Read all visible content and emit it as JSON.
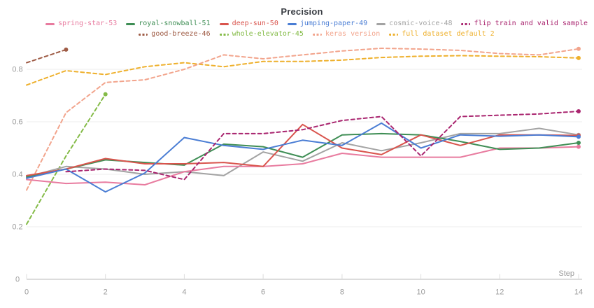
{
  "title": "Precision",
  "axes": {
    "x_label": "Step",
    "x_ticks": [
      0,
      2,
      4,
      6,
      8,
      10,
      12,
      14
    ],
    "x_range": [
      0,
      14
    ],
    "y_ticks": [
      0,
      0.2,
      0.4,
      0.6,
      0.8
    ],
    "y_tick_labels": [
      "0",
      "0.2",
      "0.4",
      "0.6",
      "0.8"
    ],
    "grid_values": [
      0.2,
      0.4,
      0.6,
      0.8
    ],
    "tick_color": "#9b9b9b",
    "grid_color": "#ededed",
    "axis_color": "#dcdcdc"
  },
  "chart_data": {
    "type": "line",
    "title": "Precision",
    "xlabel": "Step",
    "x_ticks": [
      0,
      2,
      4,
      6,
      8,
      10,
      12,
      14
    ],
    "xlim": [
      0,
      14
    ],
    "ylim": [
      0,
      0.9
    ],
    "grid": "horizontal",
    "legend_position": "top",
    "series": [
      {
        "name": "spring-star-53",
        "color": "#e87b9f",
        "dashed": false,
        "legend_row": 1,
        "start_step": 0,
        "values": [
          0.38,
          0.365,
          0.37,
          0.36,
          0.41,
          0.43,
          0.43,
          0.44,
          0.48,
          0.465,
          0.465,
          0.465,
          0.5,
          0.5,
          0.505
        ]
      },
      {
        "name": "royal-snowball-51",
        "color": "#3f8e55",
        "dashed": false,
        "legend_row": 1,
        "start_step": 0,
        "values": [
          0.39,
          0.42,
          0.455,
          0.445,
          0.435,
          0.515,
          0.505,
          0.465,
          0.55,
          0.555,
          0.55,
          0.525,
          0.495,
          0.5,
          0.52
        ]
      },
      {
        "name": "deep-sun-50",
        "color": "#d9544d",
        "dashed": false,
        "legend_row": 1,
        "start_step": 0,
        "values": [
          0.395,
          0.42,
          0.46,
          0.44,
          0.44,
          0.445,
          0.43,
          0.59,
          0.5,
          0.475,
          0.55,
          0.51,
          0.55,
          0.55,
          0.548
        ]
      },
      {
        "name": "jumping-paper-49",
        "color": "#4a7dd4",
        "dashed": false,
        "legend_row": 1,
        "start_step": 0,
        "values": [
          0.385,
          0.42,
          0.333,
          0.405,
          0.54,
          0.51,
          0.495,
          0.53,
          0.51,
          0.595,
          0.5,
          0.55,
          0.545,
          0.55,
          0.543
        ]
      },
      {
        "name": "cosmic-voice-48",
        "color": "#a3a3a3",
        "dashed": false,
        "legend_row": 1,
        "start_step": 0,
        "values": [
          0.39,
          0.43,
          0.42,
          0.4,
          0.41,
          0.395,
          0.485,
          0.45,
          0.52,
          0.49,
          0.52,
          0.555,
          0.555,
          0.575,
          0.55
        ]
      },
      {
        "name": "flip train and valid sample",
        "color": "#a9256f",
        "dashed": true,
        "legend_row": 1,
        "start_step": 1,
        "values": [
          0.41,
          0.42,
          0.415,
          0.38,
          0.555,
          0.555,
          0.57,
          0.605,
          0.62,
          0.47,
          0.62,
          0.625,
          0.63,
          0.64
        ]
      },
      {
        "name": "good-breeze-46",
        "color": "#9e5b45",
        "dashed": true,
        "legend_row": 2,
        "start_step": 0,
        "values": [
          0.825,
          0.875
        ]
      },
      {
        "name": "whole-elevator-45",
        "color": "#84bb47",
        "dashed": true,
        "legend_row": 2,
        "start_step": 0,
        "values": [
          0.21,
          0.47,
          0.705
        ]
      },
      {
        "name": "keras version",
        "color": "#f2a48c",
        "dashed": true,
        "legend_row": 2,
        "start_step": 0,
        "values": [
          0.34,
          0.635,
          0.75,
          0.76,
          0.8,
          0.855,
          0.84,
          0.855,
          0.87,
          0.88,
          0.877,
          0.872,
          0.86,
          0.855,
          0.878
        ]
      },
      {
        "name": "full dataset default 2",
        "color": "#eeb02c",
        "dashed": true,
        "legend_row": 2,
        "start_step": 0,
        "values": [
          0.74,
          0.795,
          0.78,
          0.81,
          0.825,
          0.81,
          0.83,
          0.83,
          0.835,
          0.845,
          0.85,
          0.852,
          0.85,
          0.848,
          0.843
        ]
      }
    ]
  }
}
